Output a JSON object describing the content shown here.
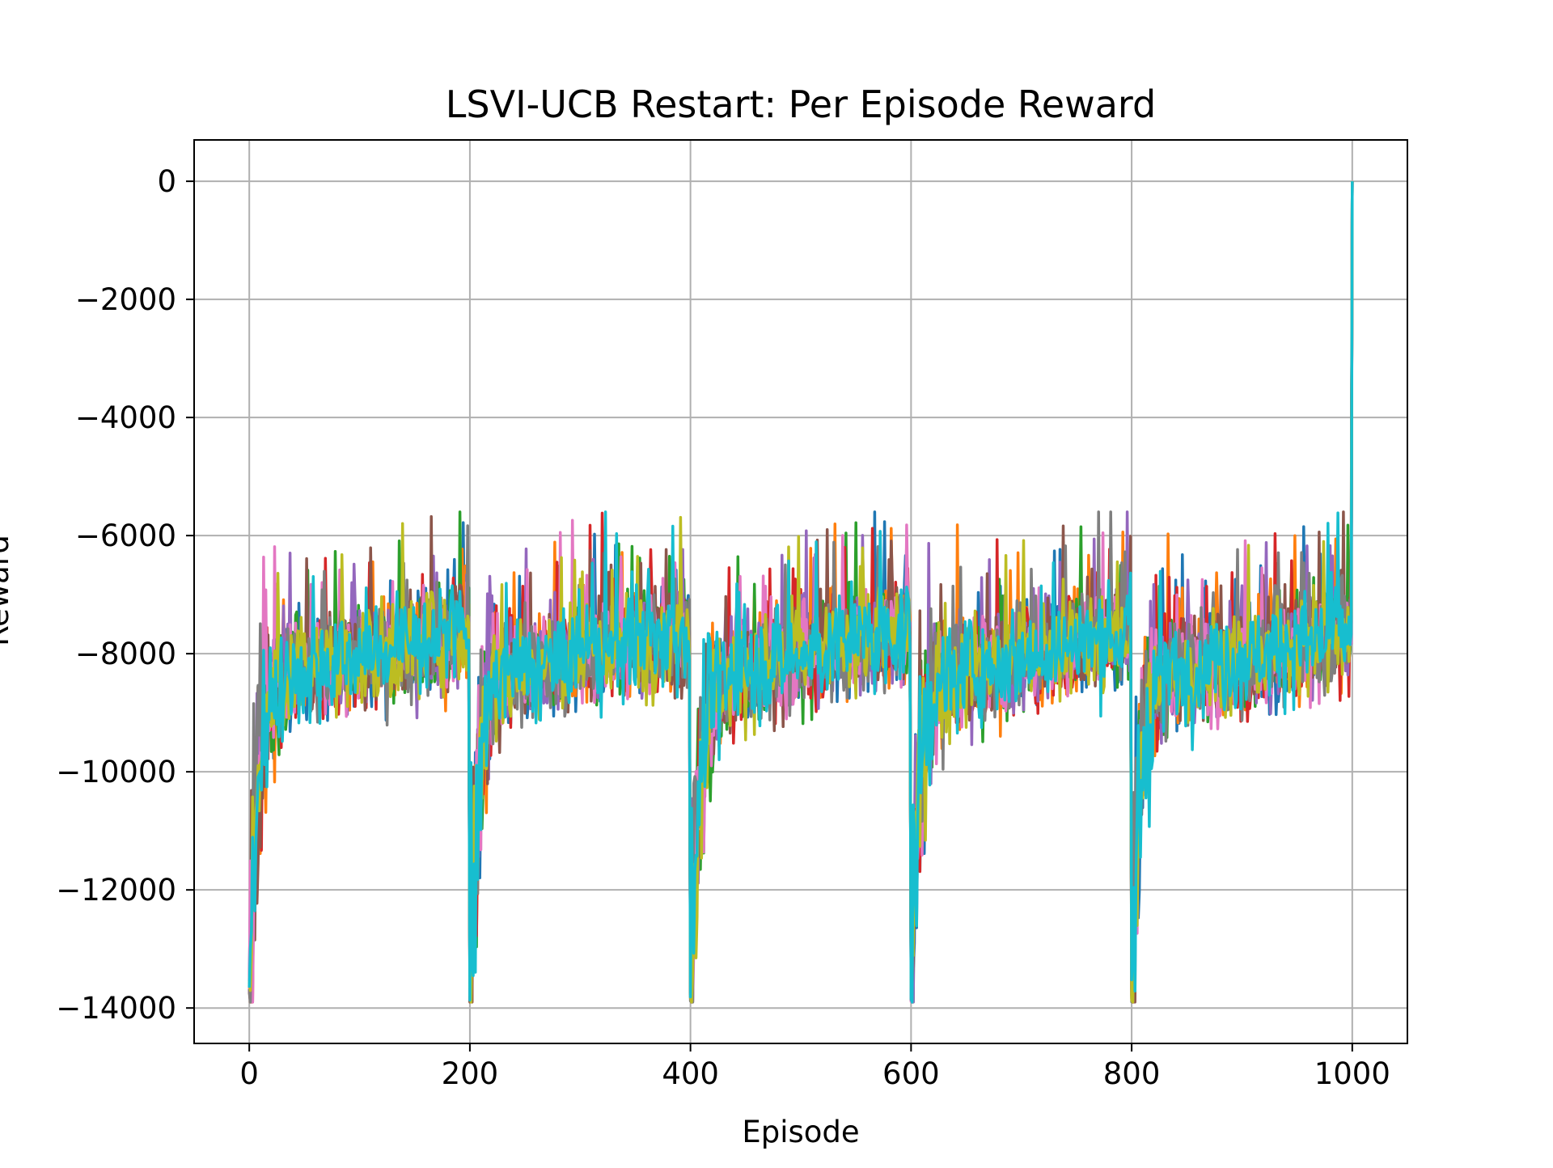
{
  "chart_data": {
    "type": "line",
    "title": "LSVI-UCB Restart: Per Episode Reward",
    "xlabel": "Episode",
    "ylabel": "Reward",
    "xlim": [
      -50,
      1050
    ],
    "ylim": [
      -14600,
      700
    ],
    "xticks": [
      0,
      200,
      400,
      600,
      800,
      1000
    ],
    "xtick_labels": [
      "0",
      "200",
      "400",
      "600",
      "800",
      "1000"
    ],
    "yticks": [
      0,
      -2000,
      -4000,
      -6000,
      -8000,
      -10000,
      -12000,
      -14000
    ],
    "ytick_labels": [
      "0",
      "−2000",
      "−4000",
      "−6000",
      "−8000",
      "−10000",
      "−12000",
      "−14000"
    ],
    "grid": true,
    "legend": "none",
    "num_series": 10,
    "episodes": [
      0,
      1000
    ],
    "restart_period": 200,
    "restart_episodes": [
      0,
      200,
      400,
      600,
      800
    ],
    "restart_min_reward": -13900,
    "steady_reward_range": [
      -8600,
      -7200
    ],
    "final_episode_reward": 0,
    "series_colors": [
      "#1f77b4",
      "#ff7f0e",
      "#2ca02c",
      "#d62728",
      "#9467bd",
      "#8c564b",
      "#e377c2",
      "#7f7f7f",
      "#bcbd22",
      "#17becf"
    ]
  }
}
